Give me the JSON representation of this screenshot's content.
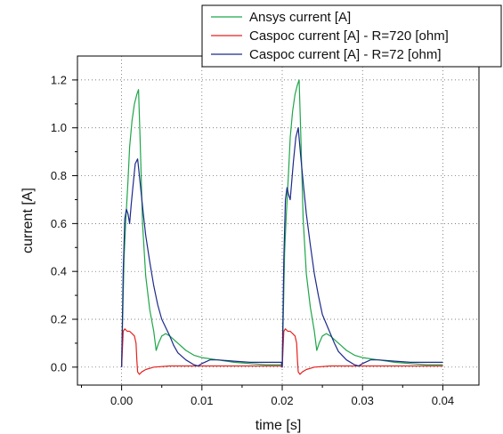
{
  "chart_data": {
    "type": "line",
    "xlabel": "time [s]",
    "ylabel": "current [A]",
    "xlim": [
      -0.0055,
      0.0445
    ],
    "ylim": [
      -0.075,
      1.3
    ],
    "x_ticks": [
      0.0,
      0.01,
      0.02,
      0.03,
      0.04
    ],
    "x_tick_labels": [
      "0.00",
      "0.01",
      "0.02",
      "0.03",
      "0.04"
    ],
    "y_ticks": [
      0.0,
      0.2,
      0.4,
      0.6,
      0.8,
      1.0,
      1.2
    ],
    "y_tick_labels": [
      "0.0",
      "0.2",
      "0.4",
      "0.6",
      "0.8",
      "1.0",
      "1.2"
    ],
    "grid": true,
    "legend_position": "top-right",
    "series": [
      {
        "name": "Ansys current [A]",
        "color": "#1fa64a",
        "x": [
          0.0,
          0.0003,
          0.0005,
          0.0008,
          0.001,
          0.0013,
          0.0016,
          0.0019,
          0.0021,
          0.0023,
          0.0026,
          0.003,
          0.0035,
          0.004,
          0.0043,
          0.0046,
          0.005,
          0.0055,
          0.006,
          0.007,
          0.008,
          0.009,
          0.01,
          0.012,
          0.014,
          0.016,
          0.018,
          0.0199,
          0.02,
          0.0203,
          0.0205,
          0.0208,
          0.021,
          0.0213,
          0.0216,
          0.0219,
          0.0221,
          0.0223,
          0.0226,
          0.023,
          0.0235,
          0.024,
          0.0243,
          0.0246,
          0.025,
          0.0255,
          0.026,
          0.027,
          0.028,
          0.029,
          0.03,
          0.032,
          0.034,
          0.036,
          0.038,
          0.0399,
          0.04
        ],
        "y": [
          0.0,
          0.45,
          0.6,
          0.78,
          0.92,
          1.03,
          1.1,
          1.14,
          1.16,
          0.95,
          0.6,
          0.38,
          0.24,
          0.15,
          0.07,
          0.1,
          0.13,
          0.14,
          0.13,
          0.1,
          0.07,
          0.05,
          0.04,
          0.03,
          0.02,
          0.015,
          0.01,
          0.01,
          0.0,
          0.48,
          0.63,
          0.82,
          0.96,
          1.07,
          1.14,
          1.18,
          1.2,
          0.98,
          0.62,
          0.39,
          0.25,
          0.15,
          0.07,
          0.1,
          0.13,
          0.14,
          0.13,
          0.1,
          0.07,
          0.05,
          0.04,
          0.03,
          0.02,
          0.015,
          0.01,
          0.01,
          0.01
        ]
      },
      {
        "name": "Caspoc current [A] - R=720 [ohm]",
        "color": "#e3231f",
        "x": [
          0.0,
          0.0002,
          0.0004,
          0.0007,
          0.001,
          0.0013,
          0.0016,
          0.0018,
          0.0019,
          0.002,
          0.0022,
          0.0025,
          0.003,
          0.004,
          0.006,
          0.01,
          0.015,
          0.0199,
          0.02,
          0.0202,
          0.0204,
          0.0207,
          0.021,
          0.0213,
          0.0216,
          0.0218,
          0.0219,
          0.022,
          0.0222,
          0.0225,
          0.023,
          0.024,
          0.026,
          0.03,
          0.035,
          0.04
        ],
        "y": [
          0.0,
          0.15,
          0.16,
          0.15,
          0.15,
          0.14,
          0.13,
          0.1,
          0.03,
          -0.02,
          -0.03,
          -0.02,
          -0.01,
          0.0,
          0.005,
          0.005,
          0.005,
          0.005,
          0.0,
          0.15,
          0.16,
          0.15,
          0.15,
          0.14,
          0.13,
          0.1,
          0.03,
          -0.02,
          -0.03,
          -0.02,
          -0.01,
          0.0,
          0.005,
          0.005,
          0.005,
          0.005
        ]
      },
      {
        "name": "Caspoc current [A] - R=72 [ohm]",
        "color": "#1c2a8c",
        "x": [
          0.0,
          0.0002,
          0.0004,
          0.0006,
          0.0008,
          0.001,
          0.0012,
          0.0014,
          0.0017,
          0.002,
          0.0023,
          0.0027,
          0.003,
          0.0035,
          0.004,
          0.0045,
          0.005,
          0.006,
          0.0065,
          0.007,
          0.008,
          0.009,
          0.0095,
          0.01,
          0.011,
          0.012,
          0.014,
          0.016,
          0.018,
          0.0199,
          0.02,
          0.0202,
          0.0204,
          0.0206,
          0.0208,
          0.021,
          0.0212,
          0.0214,
          0.0217,
          0.022,
          0.0223,
          0.0227,
          0.023,
          0.0235,
          0.024,
          0.0245,
          0.025,
          0.026,
          0.0265,
          0.027,
          0.028,
          0.029,
          0.0295,
          0.03,
          0.031,
          0.032,
          0.034,
          0.036,
          0.038,
          0.04
        ],
        "y": [
          0.0,
          0.4,
          0.62,
          0.66,
          0.64,
          0.6,
          0.68,
          0.75,
          0.85,
          0.87,
          0.77,
          0.64,
          0.55,
          0.44,
          0.34,
          0.26,
          0.2,
          0.13,
          0.09,
          0.06,
          0.03,
          0.01,
          0.005,
          0.015,
          0.03,
          0.03,
          0.025,
          0.02,
          0.02,
          0.02,
          0.0,
          0.45,
          0.7,
          0.75,
          0.72,
          0.7,
          0.78,
          0.86,
          0.96,
          1.0,
          0.88,
          0.74,
          0.64,
          0.51,
          0.39,
          0.3,
          0.22,
          0.14,
          0.1,
          0.065,
          0.03,
          0.01,
          0.005,
          0.015,
          0.03,
          0.03,
          0.025,
          0.02,
          0.02,
          0.02
        ]
      }
    ]
  }
}
